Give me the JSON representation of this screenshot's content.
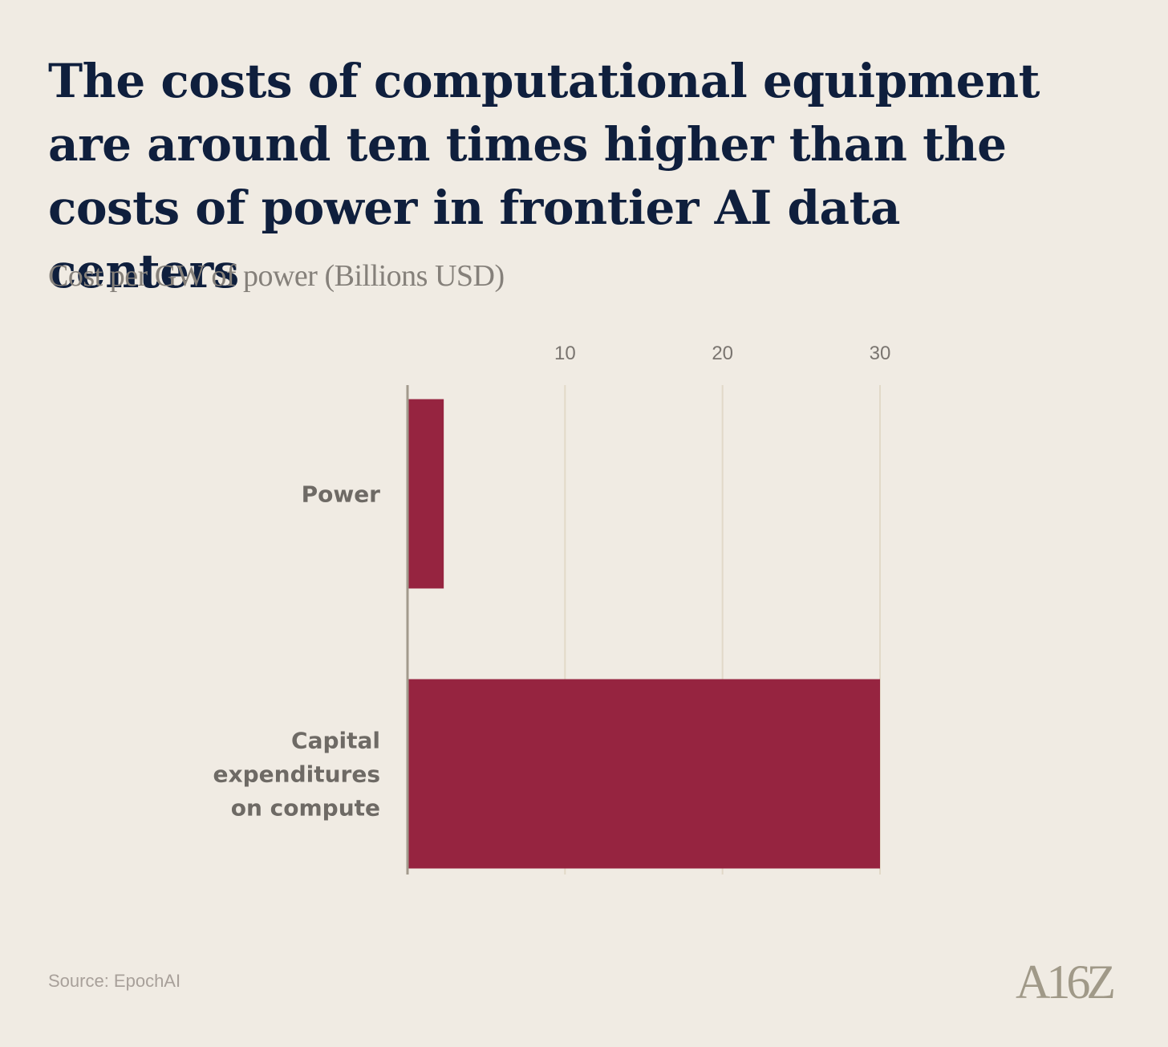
{
  "title": "The costs of computational equipment are around ten times higher than the costs of power in frontier AI data centers",
  "subtitle": "Cost per GW of power (Billions USD)",
  "source": "Source: EpochAI",
  "logo": "A16Z",
  "colors": {
    "background": "#f0ebe3",
    "bar": "#962440",
    "gridline": "#e2d9c8",
    "axis": "#a29a8c",
    "title": "#0f1f3d",
    "label": "#6e6a65"
  },
  "chart_data": {
    "type": "bar",
    "orientation": "horizontal",
    "categories": [
      "Power",
      "Capital expenditures on compute"
    ],
    "category_lines": [
      [
        "Power"
      ],
      [
        "Capital",
        "expenditures",
        "on compute"
      ]
    ],
    "values": [
      2.3,
      30
    ],
    "xlim": [
      0,
      30
    ],
    "xticks": [
      10,
      20,
      30
    ],
    "xlabel": "",
    "ylabel": "",
    "grid": true,
    "tick_position": "top"
  }
}
